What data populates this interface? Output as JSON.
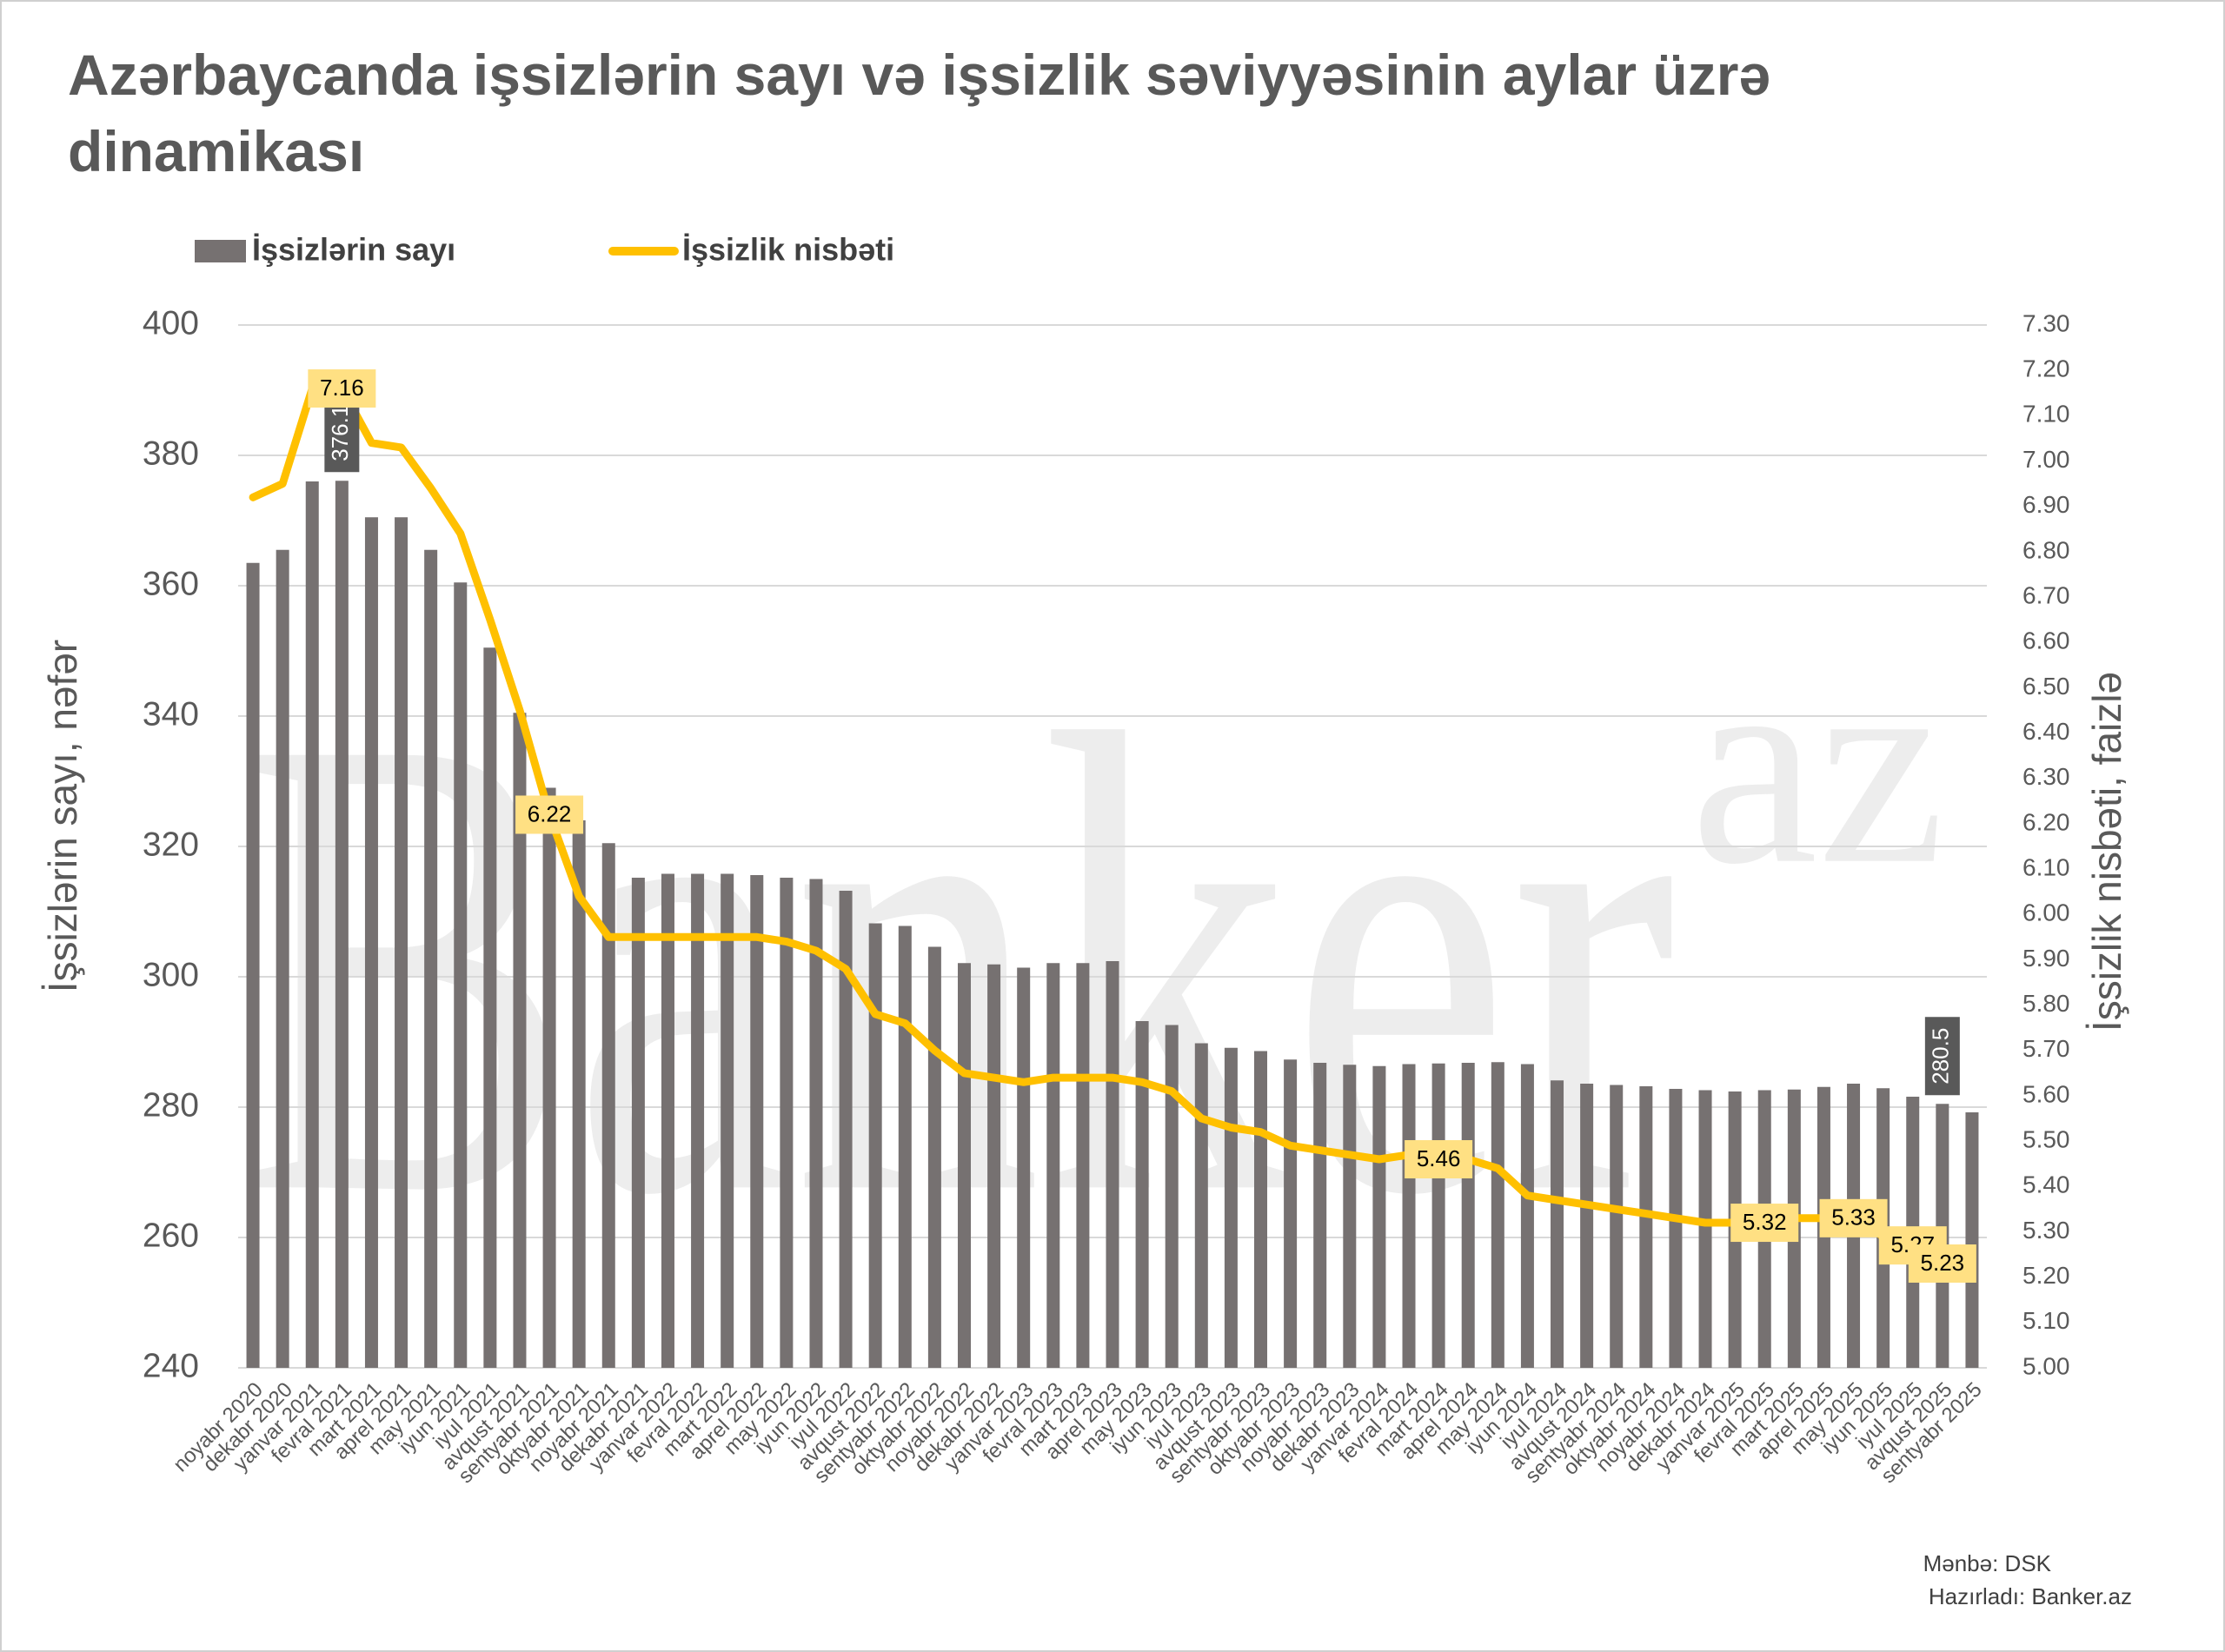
{
  "chart_data": {
    "type": "bar_line",
    "title": "Azərbaycanda işsizlərin sayı və işsizlik səviyyəsinin aylar üzrə dinamikası",
    "watermark": [
      "Banker",
      "az"
    ],
    "y_label": "İşsizlərin sayı, nəfər",
    "y2_label": "İşsizlik nisbəti, faizlə",
    "source": [
      "Mənbə: DSK",
      "Hazırladı: Banker.az"
    ],
    "categories": [
      "noyabr 2020",
      "dekabr 2020",
      "yanvar 2021",
      "fevral 2021",
      "mart 2021",
      "aprel 2021",
      "may 2021",
      "iyun 2021",
      "iyul 2021",
      "avqust 2021",
      "sentyabr 2021",
      "oktyabr 2021",
      "noyabr 2021",
      "dekabr 2021",
      "yanvar 2022",
      "fevral 2022",
      "mart 2022",
      "aprel 2022",
      "may 2022",
      "iyun 2022",
      "iyul 2022",
      "avqust 2022",
      "sentyabr 2022",
      "oktyabr 2022",
      "noyabr 2022",
      "dekabr 2022",
      "yanvar 2023",
      "fevral 2023",
      "mart 2023",
      "aprel 2023",
      "may 2023",
      "iyun 2023",
      "iyul 2023",
      "avqust 2023",
      "sentyabr 2023",
      "oktyabr 2023",
      "noyabr 2023",
      "dekabr 2023",
      "yanvar 2024",
      "fevral 2024",
      "mart 2024",
      "aprel 2024",
      "may 2024",
      "iyun 2024",
      "iyul 2024",
      "avqust 2024",
      "sentyabr 2024",
      "oktyabr 2024",
      "noyabr 2024",
      "dekabr 2024",
      "yanvar 2025",
      "fevral 2025",
      "mart 2025",
      "aprel 2025",
      "may 2025",
      "iyun 2025",
      "iyul 2025",
      "avqust 2025",
      "sentyabr 2025"
    ],
    "series": [
      {
        "name": "İşsizlərin sayı",
        "type": "bar",
        "color": "#767171",
        "values": [
          363.5,
          365.5,
          376,
          376.1,
          370.5,
          370.5,
          365.5,
          360.5,
          350.5,
          340.5,
          329,
          324,
          320.5,
          315.2,
          315.8,
          315.8,
          315.8,
          315.6,
          315.2,
          315,
          313.2,
          308.2,
          307.8,
          304.6,
          302.1,
          301.9,
          301.4,
          302.1,
          302.1,
          302.4,
          293.2,
          292.6,
          289.8,
          289.1,
          288.6,
          287.3,
          286.8,
          286.5,
          286.3,
          286.6,
          286.7,
          286.8,
          286.9,
          286.6,
          284.1,
          283.6,
          283.4,
          283.2,
          282.8,
          282.6,
          282.4,
          282.6,
          282.7,
          283.1,
          283.6,
          282.9,
          281.6,
          280.5,
          279.2
        ],
        "value_labels": [
          null,
          null,
          null,
          "376.1",
          null,
          null,
          null,
          null,
          null,
          null,
          null,
          null,
          null,
          null,
          null,
          null,
          null,
          null,
          null,
          null,
          null,
          null,
          null,
          null,
          null,
          null,
          null,
          null,
          null,
          null,
          null,
          null,
          null,
          null,
          null,
          null,
          null,
          null,
          null,
          null,
          null,
          null,
          null,
          null,
          null,
          null,
          null,
          null,
          null,
          null,
          null,
          null,
          null,
          null,
          null,
          null,
          null,
          "280.5",
          null
        ]
      },
      {
        "name": "İşsizlik nisbəti",
        "type": "line",
        "axis": "y2",
        "color": "#FFC000",
        "values": [
          6.92,
          6.95,
          7.16,
          7.16,
          7.04,
          7.03,
          6.94,
          6.84,
          6.65,
          6.45,
          6.22,
          6.04,
          5.95,
          5.95,
          5.95,
          5.95,
          5.95,
          5.95,
          5.94,
          5.92,
          5.88,
          5.78,
          5.76,
          5.7,
          5.65,
          5.64,
          5.63,
          5.64,
          5.64,
          5.64,
          5.63,
          5.61,
          5.55,
          5.53,
          5.52,
          5.49,
          5.48,
          5.47,
          5.46,
          5.47,
          5.46,
          5.46,
          5.44,
          5.38,
          5.37,
          5.36,
          5.35,
          5.34,
          5.33,
          5.32,
          5.32,
          5.32,
          5.33,
          5.33,
          5.33,
          5.29,
          5.27,
          5.23,
          5.2
        ],
        "value_labels": [
          null,
          null,
          null,
          "7.16",
          null,
          null,
          null,
          null,
          null,
          null,
          "6.22",
          null,
          null,
          null,
          null,
          null,
          null,
          null,
          null,
          null,
          null,
          null,
          null,
          null,
          null,
          null,
          null,
          null,
          null,
          null,
          null,
          null,
          null,
          null,
          null,
          null,
          null,
          null,
          null,
          null,
          "5.46",
          null,
          null,
          null,
          null,
          null,
          null,
          null,
          null,
          null,
          null,
          "5.32",
          null,
          null,
          "5.33",
          null,
          "5.27",
          "5.23",
          null
        ]
      }
    ],
    "ylim": [
      240,
      400
    ],
    "yticks": [
      240,
      260,
      280,
      300,
      320,
      340,
      360,
      380,
      400
    ],
    "y2lim": [
      5.0,
      7.3
    ],
    "y2ticks": [
      {
        "value": 5.0,
        "label": "5.00"
      },
      {
        "value": 5.1,
        "label": "5.10"
      },
      {
        "value": 5.2,
        "label": "5.20"
      },
      {
        "value": 5.3,
        "label": "5.30"
      },
      {
        "value": 5.4,
        "label": "5.40"
      },
      {
        "value": 5.5,
        "label": "5.50"
      },
      {
        "value": 5.6,
        "label": "5.60"
      },
      {
        "value": 5.7,
        "label": "5.70"
      },
      {
        "value": 5.8,
        "label": "5.80"
      },
      {
        "value": 5.9,
        "label": "5.90"
      },
      {
        "value": 6.0,
        "label": "6.00"
      },
      {
        "value": 6.1,
        "label": "6.10"
      },
      {
        "value": 6.2,
        "label": "6.20"
      },
      {
        "value": 6.3,
        "label": "6.30"
      },
      {
        "value": 6.4,
        "label": "6.40"
      },
      {
        "value": 6.5,
        "label": "6.50"
      },
      {
        "value": 6.6,
        "label": "6.60"
      },
      {
        "value": 6.7,
        "label": "6.70"
      },
      {
        "value": 6.8,
        "label": "6.80"
      },
      {
        "value": 6.9,
        "label": "6.90"
      },
      {
        "value": 7.0,
        "label": "7.00"
      },
      {
        "value": 7.1,
        "label": "7.10"
      },
      {
        "value": 7.2,
        "label": "7.20"
      },
      {
        "value": 7.3,
        "label": "7.30"
      }
    ],
    "grid": true,
    "legend": "top-left"
  }
}
